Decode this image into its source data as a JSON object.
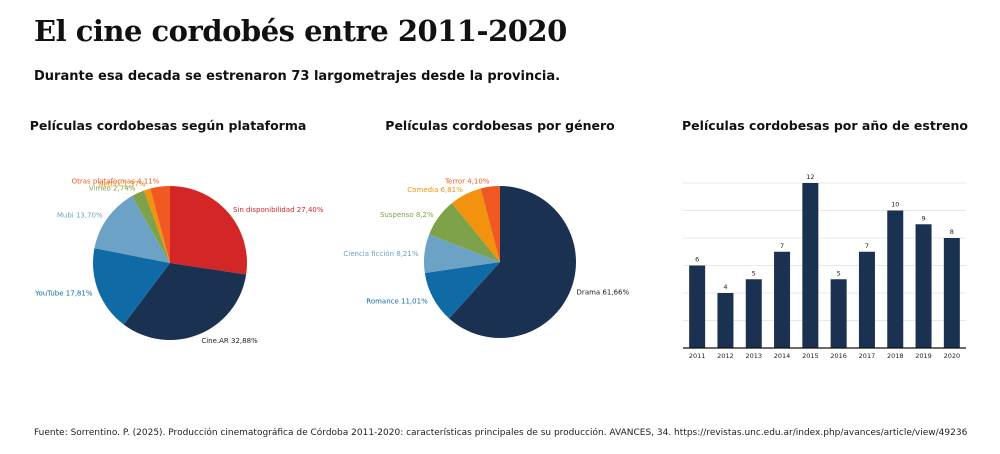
{
  "title": "El cine cordobés entre 2011-2020",
  "subtitle": "Durante esa decada se estrenaron 73 largometrajes desde la provincia.",
  "source": "Fuente: Sorrentino. P. (2025). Producción cinematográfica de Córdoba 2011-2020: características principales de su producción. AVANCES, 34. https://revistas.unc.edu.ar/index.php/avances/article/view/49236",
  "chart_data": [
    {
      "type": "pie",
      "title": "Películas cordobesas según plataforma",
      "slices": [
        {
          "label": "Sin disponibilidad 27,40%",
          "value": 27.4,
          "color": "#d42626"
        },
        {
          "label": "Cine.AR 32,88%",
          "value": 32.88,
          "color": "#1b3152"
        },
        {
          "label": "YouTube 17,81%",
          "value": 17.81,
          "color": "#106aa6"
        },
        {
          "label": "Mubi 13,70%",
          "value": 13.7,
          "color": "#6ba2c6"
        },
        {
          "label": "Vimeo 2,74%",
          "value": 2.74,
          "color": "#7ea24a"
        },
        {
          "label": "Netflix 1,37%",
          "value": 1.37,
          "color": "#f2920f"
        },
        {
          "label": "Otras plataformas 4,11%",
          "value": 4.11,
          "color": "#f05a22"
        }
      ]
    },
    {
      "type": "pie",
      "title": "Películas cordobesas por género",
      "slices": [
        {
          "label": "Drama 61,66%",
          "value": 61.66,
          "color": "#1b3152"
        },
        {
          "label": "Romance 11,01%",
          "value": 11.01,
          "color": "#106aa6"
        },
        {
          "label": "Ciencia ficción 8,21%",
          "value": 8.21,
          "color": "#6ba2c6"
        },
        {
          "label": "Suspenso 8,2%",
          "value": 8.2,
          "color": "#7ea24a"
        },
        {
          "label": "Comedia 6,81%",
          "value": 6.81,
          "color": "#f2920f"
        },
        {
          "label": "Terror 4,10%",
          "value": 4.1,
          "color": "#f05a22"
        }
      ]
    },
    {
      "type": "bar",
      "title": "Películas cordobesas por año de estreno",
      "categories": [
        "2011",
        "2012",
        "2013",
        "2014",
        "2015",
        "2016",
        "2017",
        "2018",
        "2019",
        "2020"
      ],
      "values": [
        6,
        4,
        5,
        7,
        12,
        5,
        7,
        10,
        9,
        8
      ],
      "ylim": [
        0,
        12
      ],
      "grid": true,
      "color": "#1b3152"
    }
  ]
}
